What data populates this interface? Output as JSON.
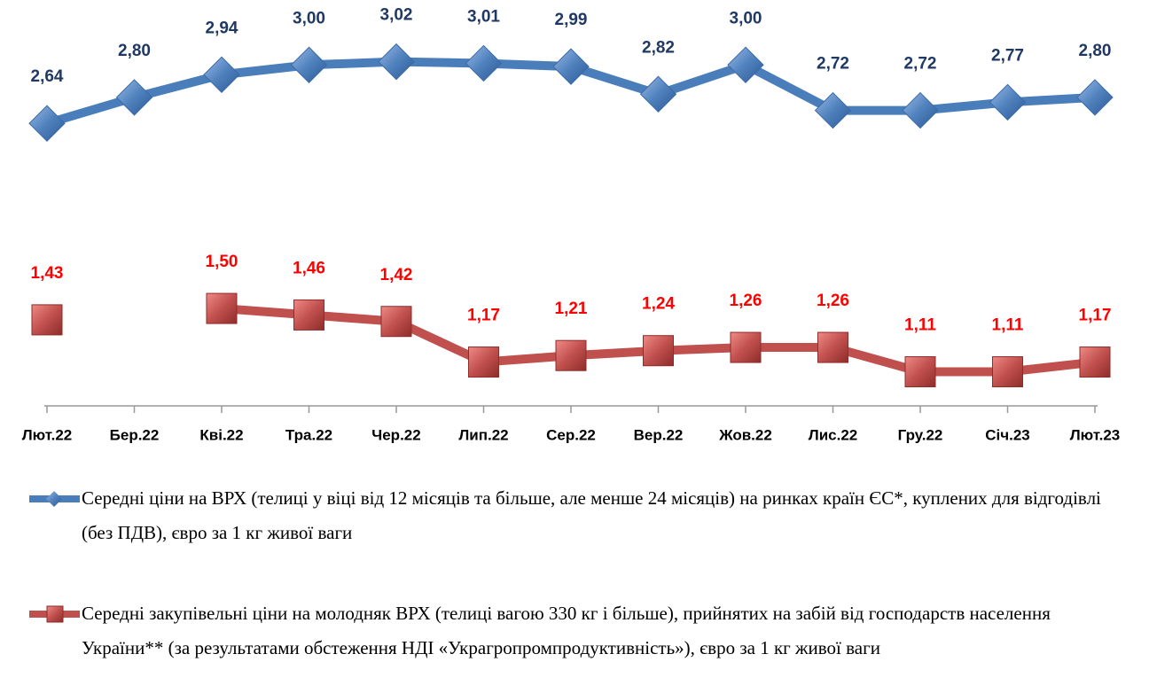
{
  "chart_data": {
    "type": "line",
    "categories": [
      "Лют.22",
      "Бер.22",
      "Кві.22",
      "Тра.22",
      "Чер.22",
      "Лип.22",
      "Сер.22",
      "Вер.22",
      "Жов.22",
      "Лис.22",
      "Гру.22",
      "Січ.23",
      "Лют.23"
    ],
    "ylim": [
      0.9,
      3.4
    ],
    "series": [
      {
        "name": "Середні ціни на ВРХ (телиці у віці від 12 місяців та більше, але менше 24 місяців) на ринках країн ЄС*, куплених для відгодівлі (без ПДВ), євро за 1 кг живої ваги",
        "color": "#4a7ebb",
        "marker": "diamond",
        "label_color": "#1f3864",
        "values": [
          2.64,
          2.8,
          2.94,
          3.0,
          3.02,
          3.01,
          2.99,
          2.82,
          3.0,
          2.72,
          2.72,
          2.77,
          2.8
        ],
        "value_labels": [
          "2,64",
          "2,80",
          "2,94",
          "3,00",
          "3,02",
          "3,01",
          "2,99",
          "2,82",
          "3,00",
          "2,72",
          "2,72",
          "2,77",
          "2,80"
        ]
      },
      {
        "name": "Середні закупівельні ціни на молодняк ВРХ (телиці вагою 330 кг і більше), прийнятих на забій від господарств населення України** (за результатами обстеження НДІ «Украгропромпродуктивність»), євро за 1 кг живої ваги",
        "color": "#c0504d",
        "marker": "square",
        "label_color": "#ff0000",
        "values": [
          1.43,
          null,
          1.5,
          1.46,
          1.42,
          1.17,
          1.21,
          1.24,
          1.26,
          1.26,
          1.11,
          1.11,
          1.17
        ],
        "value_labels": [
          "1,43",
          null,
          "1,50",
          "1,46",
          "1,42",
          "1,17",
          "1,21",
          "1,24",
          "1,26",
          "1,26",
          "1,11",
          "1,11",
          "1,17"
        ]
      }
    ]
  }
}
